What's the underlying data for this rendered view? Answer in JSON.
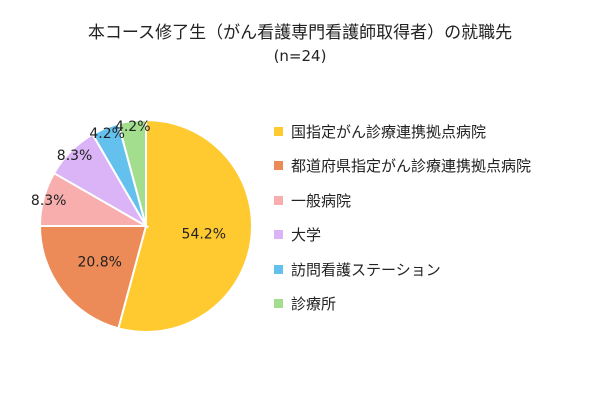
{
  "chart_data": {
    "type": "pie",
    "title": "本コース修了生（がん看護専門看護師取得者）の就職先",
    "subtitle": "(n=24)",
    "categories": [
      "国指定がん診療連携拠点病院",
      "都道府県指定がん診療連携拠点病院",
      "一般病院",
      "大学",
      "訪問看護ステーション",
      "診療所"
    ],
    "values": [
      54.2,
      20.8,
      8.3,
      8.3,
      4.2,
      4.2
    ],
    "value_labels": [
      "54.2%",
      "20.8%",
      "8.3%",
      "8.3%",
      "4.2%",
      "4.2%"
    ],
    "colors": [
      "#FFCA2F",
      "#EC8B58",
      "#F9AEAE",
      "#DAB4F6",
      "#64C1EE",
      "#A2DE8E"
    ],
    "legend_position": "right"
  }
}
